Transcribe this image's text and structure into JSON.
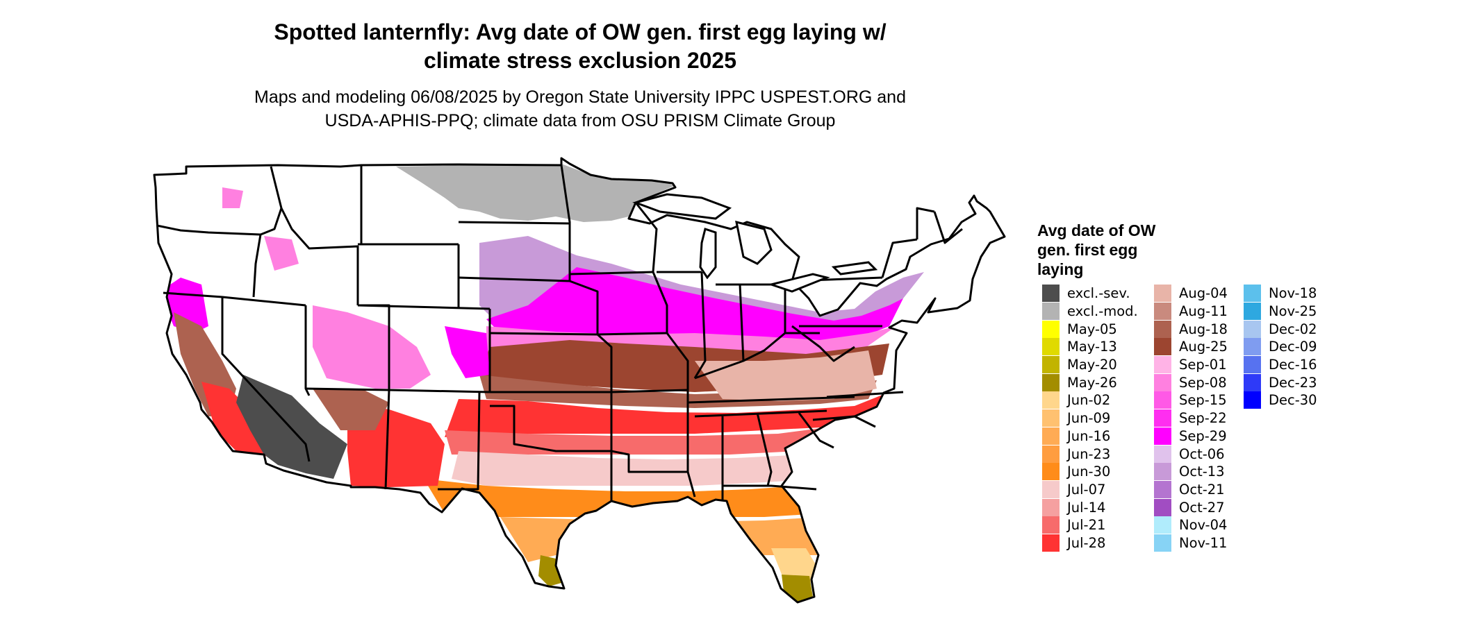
{
  "title_lines": [
    "Spotted lanternfly: Avg date of OW gen. first egg laying w/",
    "climate stress exclusion 2025"
  ],
  "subtitle_lines": [
    "Maps and modeling 06/08/2025 by Oregon State University IPPC USPEST.ORG and",
    "USDA-APHIS-PPQ; climate data from OSU PRISM Climate Group"
  ],
  "legend": {
    "title_lines": [
      "Avg date of OW",
      "gen. first egg",
      "laying"
    ],
    "columns": [
      [
        {
          "label": "excl.-sev.",
          "color": "#4d4d4d"
        },
        {
          "label": "excl.-mod.",
          "color": "#b3b3b3"
        },
        {
          "label": "May-05",
          "color": "#ffff00"
        },
        {
          "label": "May-13",
          "color": "#e0da00"
        },
        {
          "label": "May-20",
          "color": "#c2b400"
        },
        {
          "label": "May-26",
          "color": "#a38d00"
        },
        {
          "label": "Jun-02",
          "color": "#ffd68c"
        },
        {
          "label": "Jun-09",
          "color": "#ffc170"
        },
        {
          "label": "Jun-16",
          "color": "#ffab54"
        },
        {
          "label": "Jun-23",
          "color": "#ff9d40"
        },
        {
          "label": "Jun-30",
          "color": "#ff8c1a"
        },
        {
          "label": "Jul-07",
          "color": "#f6caca"
        },
        {
          "label": "Jul-14",
          "color": "#f5a0a0"
        },
        {
          "label": "Jul-21",
          "color": "#f76b6b"
        },
        {
          "label": "Jul-28",
          "color": "#ff3333"
        }
      ],
      [
        {
          "label": "Aug-04",
          "color": "#e8b4a8"
        },
        {
          "label": "Aug-11",
          "color": "#c98a7e"
        },
        {
          "label": "Aug-18",
          "color": "#ad6250"
        },
        {
          "label": "Aug-25",
          "color": "#9c4530"
        },
        {
          "label": "Sep-01",
          "color": "#ffb3e6"
        },
        {
          "label": "Sep-08",
          "color": "#ff80e0"
        },
        {
          "label": "Sep-15",
          "color": "#ff59e6"
        },
        {
          "label": "Sep-22",
          "color": "#ff2ef0"
        },
        {
          "label": "Sep-29",
          "color": "#ff00ff"
        },
        {
          "label": "Oct-06",
          "color": "#e0c2ec"
        },
        {
          "label": "Oct-13",
          "color": "#c89ad8"
        },
        {
          "label": "Oct-21",
          "color": "#b474d0"
        },
        {
          "label": "Oct-27",
          "color": "#a14dc2"
        },
        {
          "label": "Nov-04",
          "color": "#b0ecfc"
        },
        {
          "label": "Nov-11",
          "color": "#87d3f5"
        }
      ],
      [
        {
          "label": "Nov-18",
          "color": "#5cc0ec"
        },
        {
          "label": "Nov-25",
          "color": "#2ea8e0"
        },
        {
          "label": "Dec-02",
          "color": "#a8c6f0"
        },
        {
          "label": "Dec-09",
          "color": "#7f9cf0"
        },
        {
          "label": "Dec-16",
          "color": "#5772f0"
        },
        {
          "label": "Dec-23",
          "color": "#2e3af8"
        },
        {
          "label": "Dec-30",
          "color": "#0000ff"
        }
      ]
    ]
  }
}
